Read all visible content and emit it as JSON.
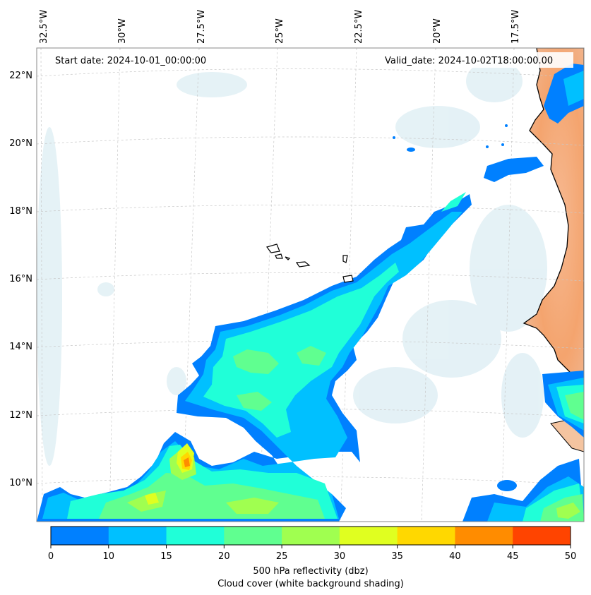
{
  "map": {
    "header_left": "Start date: 2024-10-01_00:00:00",
    "header_right": "Valid_date: 2024-10-02T18:00:00.00",
    "lon_labels": [
      "32.5°W",
      "30°W",
      "27.5°W",
      "25°W",
      "22.5°W",
      "20°W",
      "17.5°W"
    ],
    "lat_labels": [
      "22°N",
      "20°N",
      "18°N",
      "16°N",
      "14°N",
      "12°N",
      "10°N"
    ],
    "ocean_color": "#ffffff",
    "land_color": "#f4a46e",
    "coastline_color": "#000000",
    "gridline_style": "dashed"
  },
  "colorbar": {
    "ticks": [
      "0",
      "10",
      "15",
      "20",
      "25",
      "30",
      "35",
      "40",
      "45",
      "50"
    ],
    "colors": [
      "#0080ff",
      "#00c0ff",
      "#20ffd8",
      "#60ff90",
      "#a0ff50",
      "#e0ff20",
      "#ffd800",
      "#ff8c00",
      "#ff4400"
    ],
    "label_line1": "500 hPa reflectivity (dbz)",
    "label_line2": "Cloud cover (white background shading)"
  }
}
